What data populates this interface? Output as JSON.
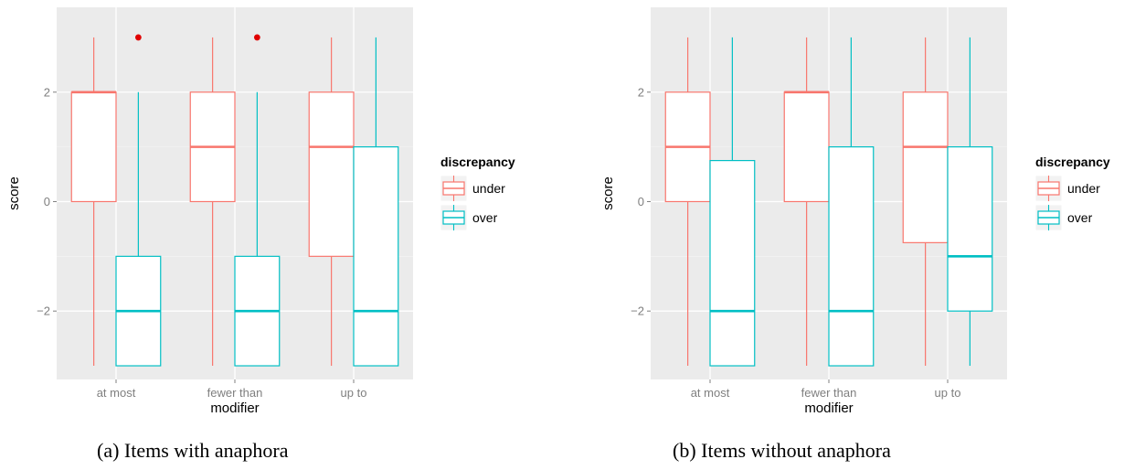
{
  "colors": {
    "under": "#F8766D",
    "over": "#00BFC4",
    "panel": "#EBEBEB",
    "grid": "#FFFFFF",
    "outlier": "#E00000"
  },
  "chart_data": [
    {
      "type": "boxplot",
      "caption": "(a) Items with anaphora",
      "xlabel": "modifier",
      "ylabel": "score",
      "ylim": [
        -3.25,
        3.55
      ],
      "yticks": [
        -2,
        0,
        2
      ],
      "ytick_labels": [
        "−2",
        "0",
        "2"
      ],
      "categories": [
        "at most",
        "fewer than",
        "up to"
      ],
      "legend": {
        "title": "discrepancy",
        "entries": [
          "under",
          "over"
        ],
        "position": "right"
      },
      "series": [
        {
          "name": "under",
          "boxes": [
            {
              "category": "at most",
              "min": -3,
              "q1": 0,
              "median": 2,
              "q3": 2,
              "max": 3,
              "outliers": []
            },
            {
              "category": "fewer than",
              "min": -3,
              "q1": 0,
              "median": 1,
              "q3": 2,
              "max": 3,
              "outliers": []
            },
            {
              "category": "up to",
              "min": -3,
              "q1": -1,
              "median": 1,
              "q3": 2,
              "max": 3,
              "outliers": []
            }
          ]
        },
        {
          "name": "over",
          "boxes": [
            {
              "category": "at most",
              "min": -3,
              "q1": -3,
              "median": -2,
              "q3": -1,
              "max": 2,
              "outliers": [
                3
              ]
            },
            {
              "category": "fewer than",
              "min": -3,
              "q1": -3,
              "median": -2,
              "q3": -1,
              "max": 2,
              "outliers": [
                3
              ]
            },
            {
              "category": "up to",
              "min": -3,
              "q1": -3,
              "median": -2,
              "q3": 1,
              "max": 3,
              "outliers": []
            }
          ]
        }
      ]
    },
    {
      "type": "boxplot",
      "caption": "(b) Items without anaphora",
      "xlabel": "modifier",
      "ylabel": "score",
      "ylim": [
        -3.25,
        3.55
      ],
      "yticks": [
        -2,
        0,
        2
      ],
      "ytick_labels": [
        "−2",
        "0",
        "2"
      ],
      "categories": [
        "at most",
        "fewer than",
        "up to"
      ],
      "legend": {
        "title": "discrepancy",
        "entries": [
          "under",
          "over"
        ],
        "position": "right"
      },
      "series": [
        {
          "name": "under",
          "boxes": [
            {
              "category": "at most",
              "min": -3,
              "q1": 0,
              "median": 1,
              "q3": 2,
              "max": 3,
              "outliers": []
            },
            {
              "category": "fewer than",
              "min": -3,
              "q1": 0,
              "median": 2,
              "q3": 2,
              "max": 3,
              "outliers": []
            },
            {
              "category": "up to",
              "min": -3,
              "q1": -0.75,
              "median": 1,
              "q3": 2,
              "max": 3,
              "outliers": []
            }
          ]
        },
        {
          "name": "over",
          "boxes": [
            {
              "category": "at most",
              "min": -3,
              "q1": -3,
              "median": -2,
              "q3": 0.75,
              "max": 3,
              "outliers": []
            },
            {
              "category": "fewer than",
              "min": -3,
              "q1": -3,
              "median": -2,
              "q3": 1,
              "max": 3,
              "outliers": []
            },
            {
              "category": "up to",
              "min": -3,
              "q1": -2,
              "median": -1,
              "q3": 1,
              "max": 3,
              "outliers": []
            }
          ]
        }
      ]
    }
  ]
}
